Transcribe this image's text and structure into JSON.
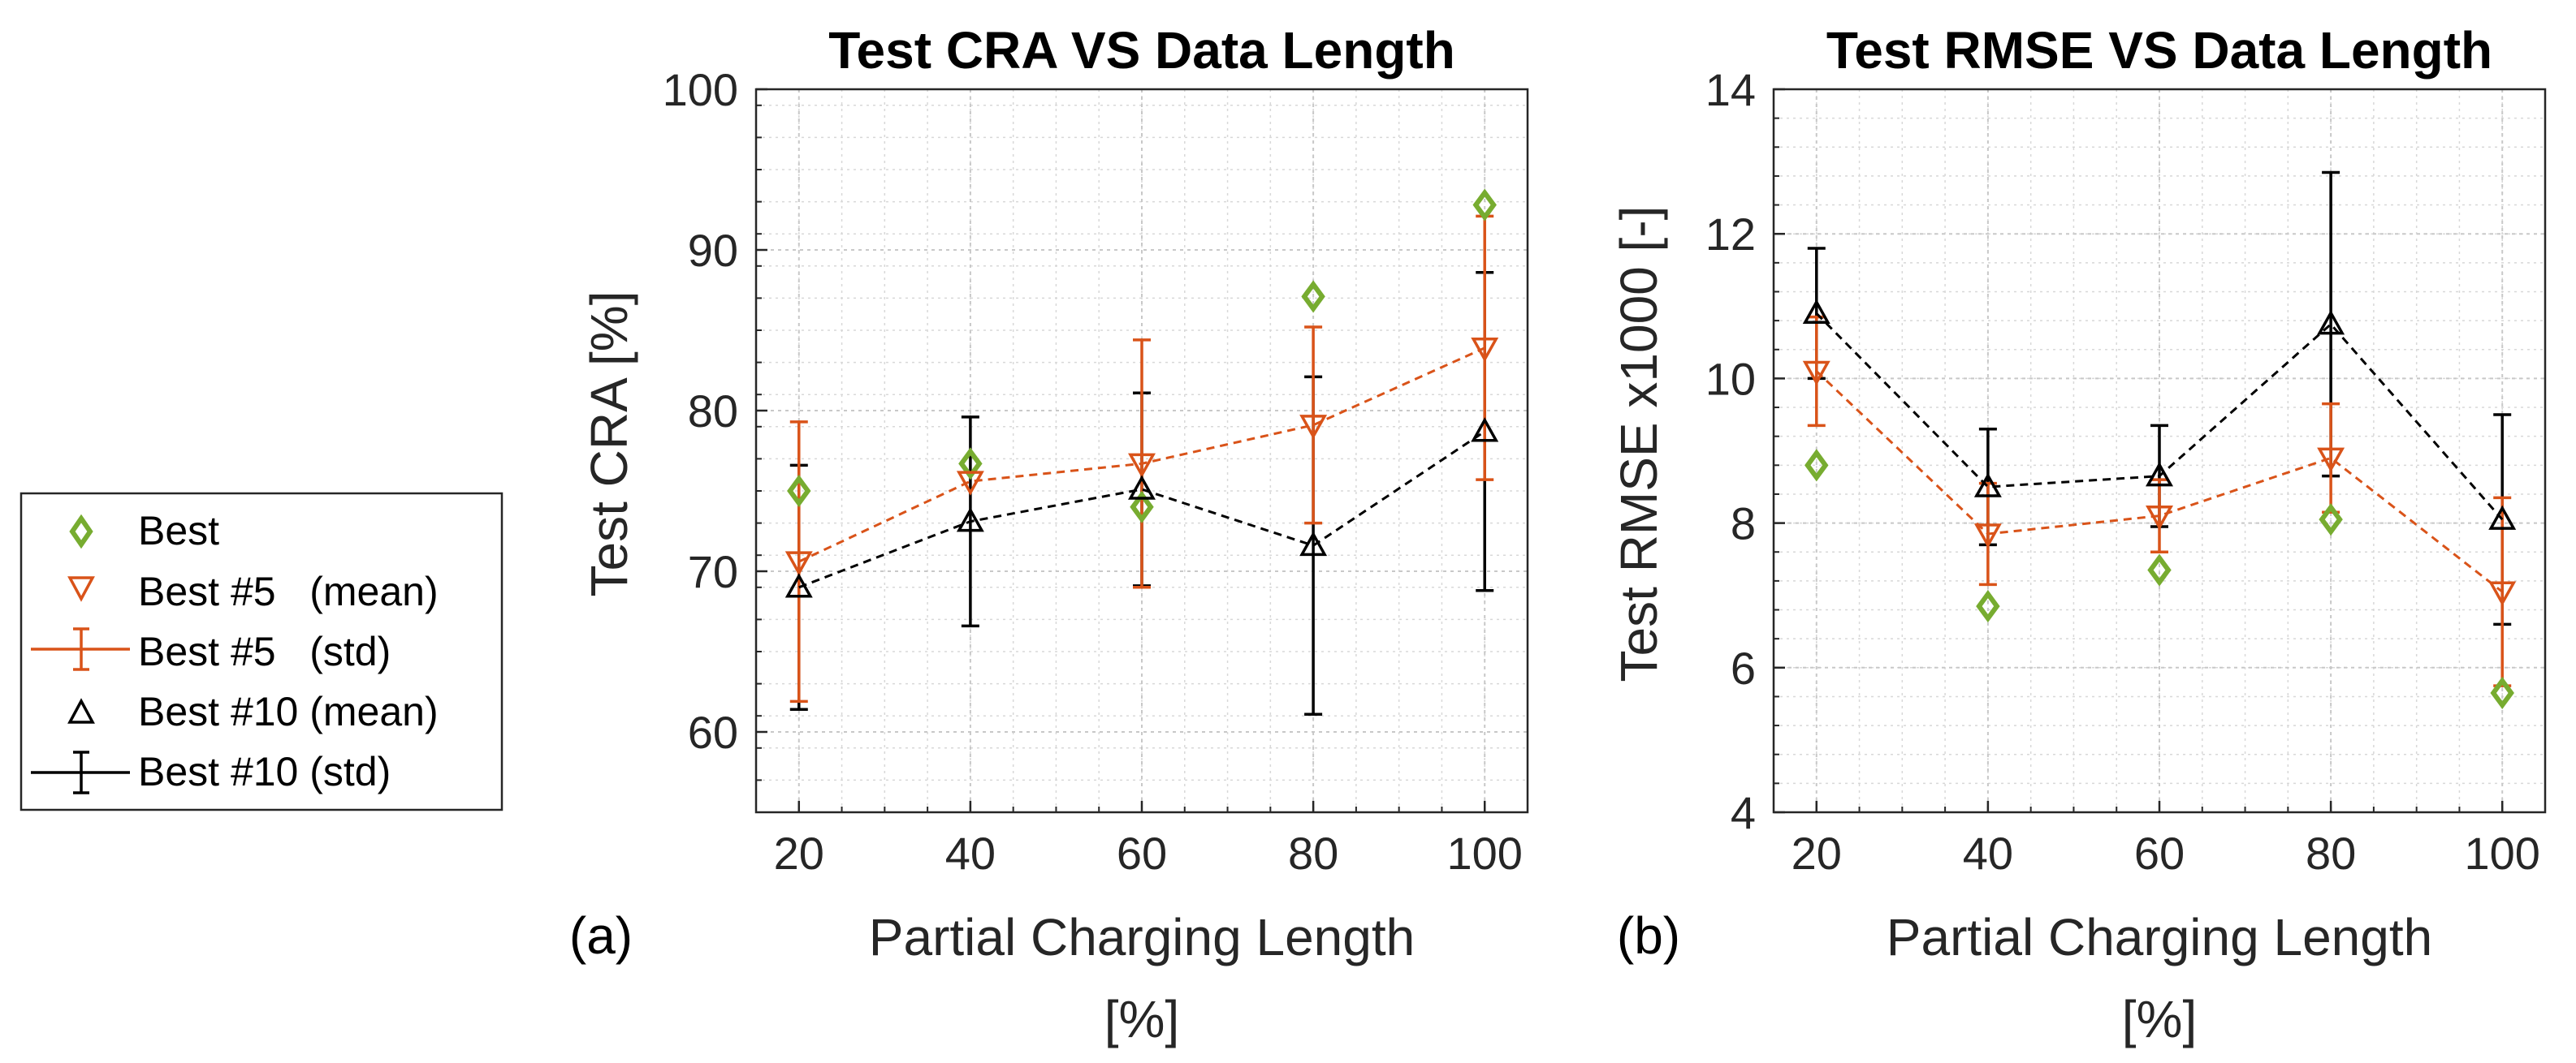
{
  "legend": {
    "entries": [
      {
        "label": "Best"
      },
      {
        "label": "Best #5   (mean)"
      },
      {
        "label": "Best #5   (std)"
      },
      {
        "label": "Best #10 (mean)"
      },
      {
        "label": "Best #10 (std)"
      }
    ]
  },
  "colors": {
    "best": "#77AC30",
    "best5": "#D95319",
    "best10": "#000000",
    "grid": "#d8d8d8",
    "axis": "#262626"
  },
  "chart_data": [
    {
      "type": "scatter",
      "panel_label": "(a)",
      "title": "Test CRA VS Data Length",
      "xlabel_line1": "Partial Charging Length",
      "xlabel_line2": "[%]",
      "ylabel": "Test CRA [%]",
      "xlim": [
        15,
        105
      ],
      "ylim": [
        55,
        100
      ],
      "x_ticks": [
        20,
        40,
        60,
        80,
        100
      ],
      "y_ticks": [
        60,
        70,
        80,
        90,
        100
      ],
      "x": [
        20,
        40,
        60,
        80,
        100
      ],
      "grid": true,
      "series": [
        {
          "name": "Best",
          "key": "best",
          "marker": "diamond",
          "values": [
            75.0,
            76.7,
            74.0,
            87.1,
            92.8
          ]
        },
        {
          "name": "Best #5",
          "key": "best5",
          "marker": "triangle-down",
          "values": [
            70.6,
            75.6,
            76.7,
            79.1,
            83.9
          ],
          "std": [
            8.7,
            0.0,
            7.7,
            6.1,
            8.2
          ]
        },
        {
          "name": "Best #10",
          "key": "best10",
          "marker": "triangle-up",
          "values": [
            69.0,
            73.1,
            75.1,
            71.6,
            78.7
          ],
          "std": [
            7.6,
            6.5,
            6.0,
            10.5,
            9.9
          ]
        }
      ]
    },
    {
      "type": "scatter",
      "panel_label": "(b)",
      "title": "Test RMSE VS Data Length",
      "xlabel_line1": "Partial Charging Length",
      "xlabel_line2": "[%]",
      "ylabel": "Test RMSE x1000 [-]",
      "xlim": [
        15,
        105
      ],
      "ylim": [
        4,
        14
      ],
      "x_ticks": [
        20,
        40,
        60,
        80,
        100
      ],
      "y_ticks": [
        4,
        6,
        8,
        10,
        12,
        14
      ],
      "x": [
        20,
        40,
        60,
        80,
        100
      ],
      "grid": true,
      "series": [
        {
          "name": "Best",
          "key": "best",
          "marker": "diamond",
          "values": [
            8.8,
            6.85,
            7.35,
            8.05,
            5.65
          ]
        },
        {
          "name": "Best #5",
          "key": "best5",
          "marker": "triangle-down",
          "values": [
            10.1,
            7.85,
            8.1,
            8.9,
            7.05
          ],
          "std": [
            0.75,
            0.7,
            0.5,
            0.75,
            1.3
          ]
        },
        {
          "name": "Best #10",
          "key": "best10",
          "marker": "triangle-up",
          "values": [
            10.9,
            8.5,
            8.65,
            10.75,
            8.05
          ],
          "std": [
            0.9,
            0.8,
            0.7,
            2.1,
            1.45
          ]
        }
      ]
    }
  ]
}
